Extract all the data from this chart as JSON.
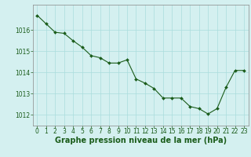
{
  "x": [
    0,
    1,
    2,
    3,
    4,
    5,
    6,
    7,
    8,
    9,
    10,
    11,
    12,
    13,
    14,
    15,
    16,
    17,
    18,
    19,
    20,
    21,
    22,
    23
  ],
  "y": [
    1016.7,
    1016.3,
    1015.9,
    1015.85,
    1015.5,
    1015.2,
    1014.8,
    1014.7,
    1014.45,
    1014.45,
    1014.6,
    1013.7,
    1013.5,
    1013.25,
    1012.8,
    1012.8,
    1012.8,
    1012.4,
    1012.3,
    1012.05,
    1012.3,
    1013.3,
    1014.1,
    1014.1
  ],
  "line_color": "#1a5c1a",
  "marker": "D",
  "marker_size": 2.0,
  "bg_color": "#d4f0f0",
  "grid_color": "#aadddd",
  "xlabel": "Graphe pression niveau de la mer (hPa)",
  "xlabel_color": "#1a5c1a",
  "tick_color": "#1a5c1a",
  "axis_label_fontsize": 7,
  "tick_fontsize": 5.5,
  "ylim": [
    1011.5,
    1017.2
  ],
  "yticks": [
    1012,
    1013,
    1014,
    1015,
    1016
  ],
  "xlim": [
    -0.5,
    23.5
  ]
}
